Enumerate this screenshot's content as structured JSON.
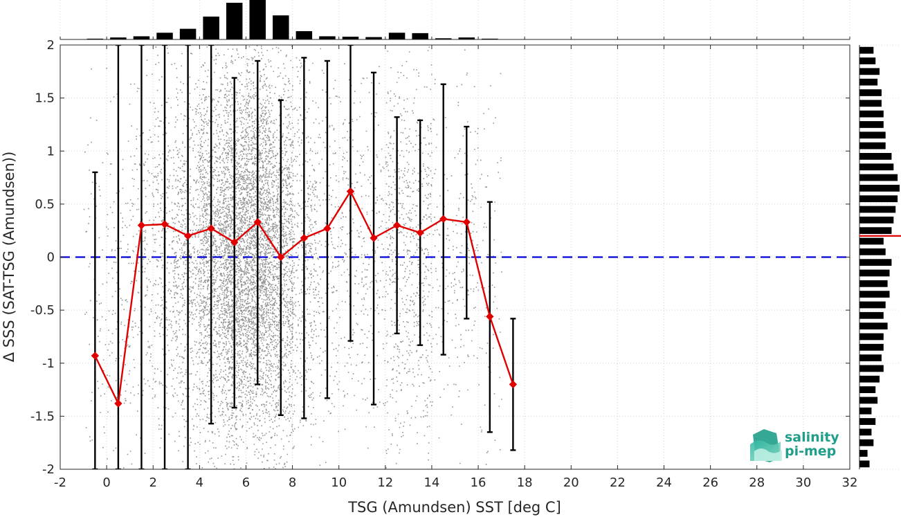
{
  "chart_data": {
    "type": "scatter",
    "xlabel": "TSG (Amundsen) SST [deg C]",
    "ylabel": "Δ SSS (SAT-TSG (Amundsen))",
    "xlim": [
      -2,
      32
    ],
    "ylim": [
      -2,
      2
    ],
    "x_ticks": [
      "-2",
      "0",
      "2",
      "4",
      "6",
      "8",
      "10",
      "12",
      "14",
      "16",
      "18",
      "20",
      "22",
      "24",
      "26",
      "28",
      "30",
      "32"
    ],
    "y_ticks": [
      "-2",
      "-1.5",
      "-1",
      "-0.5",
      "0",
      "0.5",
      "1",
      "1.5",
      "2"
    ],
    "grid": true,
    "reference_line": {
      "y": 0,
      "color": "#0000dd",
      "style": "dashed"
    },
    "binned_mean": {
      "color": "#e00000",
      "x": [
        -0.5,
        0.5,
        1.5,
        2.5,
        3.5,
        4.5,
        5.5,
        6.5,
        7.5,
        8.5,
        9.5,
        10.5,
        11.5,
        12.5,
        13.5,
        14.5,
        15.5,
        16.5,
        17.5
      ],
      "mean": [
        -0.93,
        -1.38,
        0.3,
        0.31,
        0.2,
        0.27,
        0.14,
        0.33,
        0.0,
        0.18,
        0.27,
        0.62,
        0.18,
        0.3,
        0.23,
        0.36,
        0.33,
        -0.56,
        -1.2
      ],
      "lower": [
        -2.0,
        -2.0,
        -2.0,
        -2.0,
        -2.0,
        -1.57,
        -1.42,
        -1.2,
        -1.49,
        -1.52,
        -1.33,
        -0.79,
        -1.39,
        -0.72,
        -0.83,
        -0.92,
        -0.58,
        -1.65,
        -1.82
      ],
      "upper": [
        0.8,
        2.0,
        2.0,
        2.0,
        2.0,
        2.0,
        1.69,
        1.85,
        1.48,
        1.88,
        1.85,
        2.0,
        1.74,
        1.32,
        1.29,
        1.63,
        1.23,
        0.52,
        -0.58
      ]
    },
    "scatter_color": "#808080",
    "top_histogram": {
      "x": [
        -0.5,
        0.5,
        1.5,
        2.5,
        3.5,
        4.5,
        5.5,
        6.5,
        7.5,
        8.5,
        9.5,
        10.5,
        11.5,
        12.5,
        13.5,
        14.5,
        15.5,
        16.5
      ],
      "values": [
        0.02,
        0.05,
        0.08,
        0.17,
        0.27,
        0.58,
        0.93,
        1.0,
        0.61,
        0.21,
        0.08,
        0.07,
        0.06,
        0.17,
        0.16,
        0.03,
        0.05,
        0.02
      ]
    },
    "right_histogram": {
      "bin_edges_start": -2.0,
      "bin_width": 0.1,
      "values": [
        0.25,
        0.2,
        0.35,
        0.3,
        0.4,
        0.3,
        0.45,
        0.4,
        0.5,
        0.6,
        0.55,
        0.6,
        0.6,
        0.7,
        0.6,
        0.65,
        0.75,
        0.7,
        0.75,
        0.8,
        0.65,
        0.6,
        0.8,
        0.85,
        0.9,
        0.95,
        1.0,
        0.95,
        0.85,
        0.8,
        0.65,
        0.65,
        0.6,
        0.6,
        0.55,
        0.55,
        0.45,
        0.5,
        0.4,
        0.35
      ],
      "median_marker_y": 0.2,
      "median_color": "#e00000"
    }
  },
  "logo": {
    "line1": "salinity",
    "line2": "pi-mep"
  }
}
